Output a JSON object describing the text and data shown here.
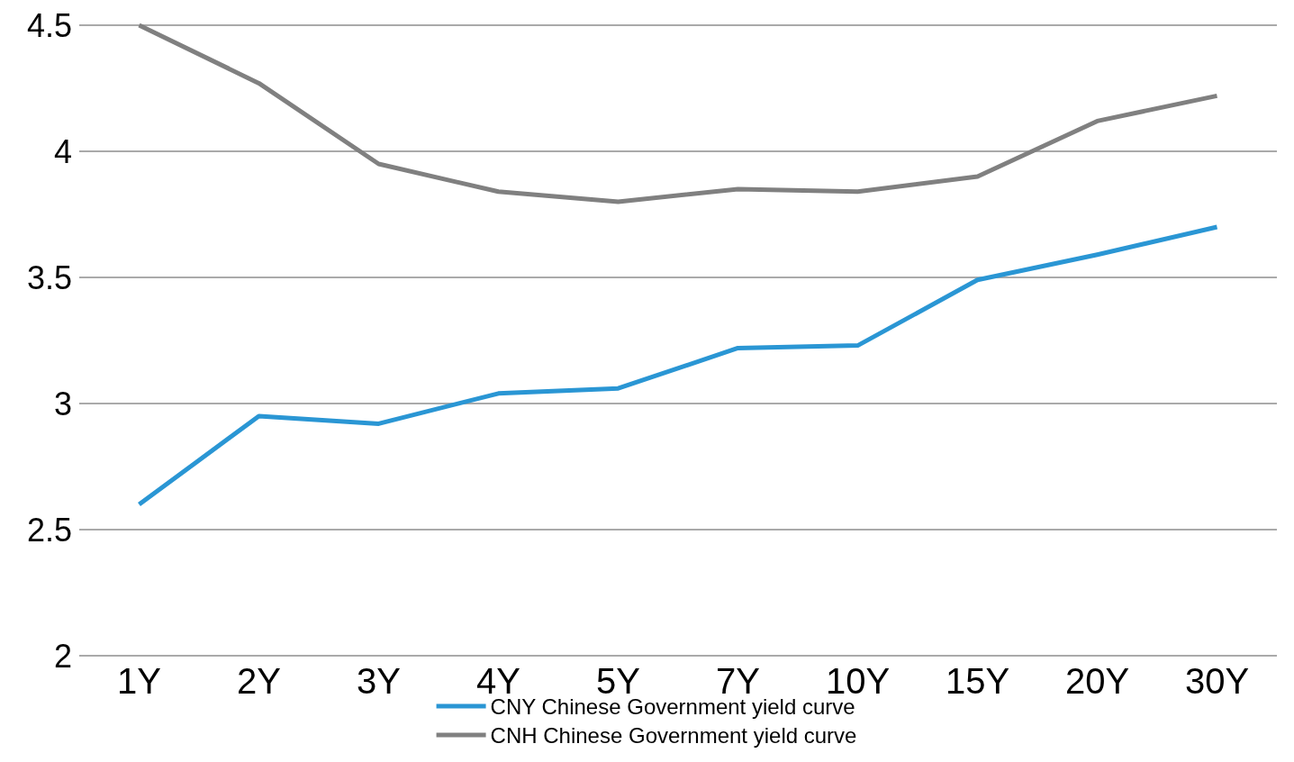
{
  "chart_data": {
    "type": "line",
    "categories": [
      "1Y",
      "2Y",
      "3Y",
      "4Y",
      "5Y",
      "7Y",
      "10Y",
      "15Y",
      "20Y",
      "30Y"
    ],
    "series": [
      {
        "name": "CNY Chinese Government yield curve",
        "color": "#2a96d4",
        "values": [
          2.6,
          2.95,
          2.92,
          3.04,
          3.06,
          3.22,
          3.23,
          3.49,
          3.59,
          3.7
        ]
      },
      {
        "name": "CNH Chinese Government yield curve",
        "color": "#808080",
        "values": [
          4.5,
          4.27,
          3.95,
          3.84,
          3.8,
          3.85,
          3.84,
          3.9,
          4.12,
          4.22
        ]
      }
    ],
    "ylim": [
      2,
      4.5
    ],
    "yticks": [
      2,
      2.5,
      3,
      3.5,
      4,
      4.5
    ],
    "grid": "y",
    "legend": "bottom",
    "marker": "none"
  }
}
